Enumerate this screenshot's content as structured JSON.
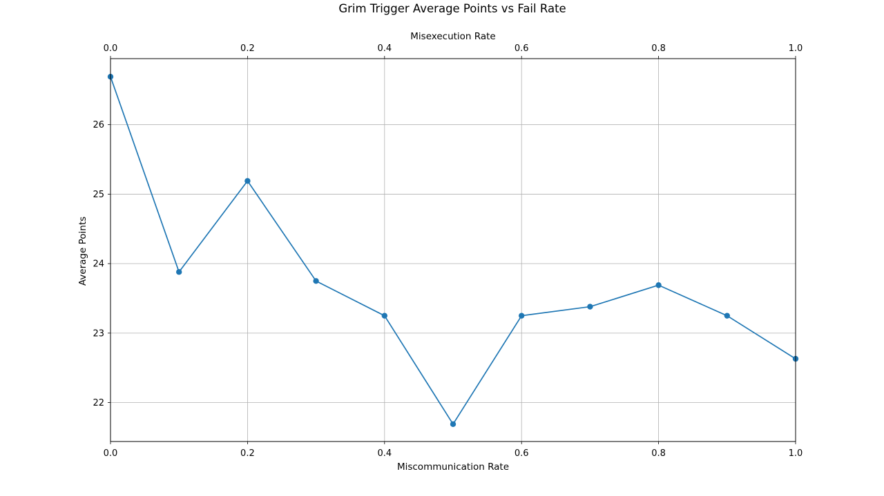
{
  "chart_data": {
    "type": "line",
    "title": "Grim Trigger Average Points vs Fail Rate",
    "xlabel": "Miscommunication Rate",
    "x2label": "Misexecution Rate",
    "ylabel": "Average Points",
    "xlim": [
      0.0,
      1.0
    ],
    "ylim": [
      21.44,
      26.95
    ],
    "grid": true,
    "x_ticks": [
      "0.0",
      "0.2",
      "0.4",
      "0.6",
      "0.8",
      "1.0"
    ],
    "x2_ticks": [
      "0.0",
      "0.2",
      "0.4",
      "0.6",
      "0.8",
      "1.0"
    ],
    "y_ticks": [
      "22",
      "23",
      "24",
      "25",
      "26"
    ],
    "series": [
      {
        "color": "#1f77b4",
        "marker": "circle",
        "x": [
          0.0,
          0.1,
          0.2,
          0.3,
          0.4,
          0.5,
          0.6,
          0.7,
          0.8,
          0.9,
          1.0
        ],
        "y": [
          26.69,
          23.88,
          25.19,
          23.75,
          23.25,
          21.69,
          23.25,
          23.38,
          23.69,
          23.25,
          22.63
        ]
      }
    ]
  }
}
